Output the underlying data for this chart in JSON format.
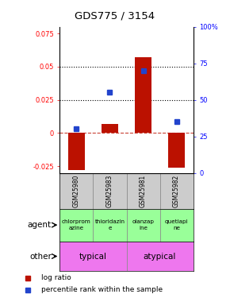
{
  "title": "GDS775 / 3154",
  "samples": [
    "GSM25980",
    "GSM25983",
    "GSM25981",
    "GSM25982"
  ],
  "log_ratios": [
    -0.028,
    0.007,
    0.057,
    -0.026
  ],
  "percentile_ranks_pct": [
    30,
    55,
    70,
    35
  ],
  "ylim_left": [
    -0.03,
    0.08
  ],
  "ylim_right": [
    0,
    100
  ],
  "yticks_left": [
    -0.025,
    0,
    0.025,
    0.05,
    0.075
  ],
  "yticks_left_labels": [
    "-0.025",
    "0",
    "0.025",
    "0.05",
    "0.075"
  ],
  "yticks_right": [
    0,
    25,
    50,
    75,
    100
  ],
  "yticks_right_labels": [
    "0",
    "25",
    "50",
    "75",
    "100%"
  ],
  "hlines_dotted": [
    0.025,
    0.05
  ],
  "hline_dashed": 0,
  "bar_color": "#bb1100",
  "dot_color": "#2244cc",
  "agent_labels": [
    "chlorprom\nazine",
    "thioridazin\ne",
    "olanzap\nine",
    "quetiapi\nne"
  ],
  "agent_color": "#99ff99",
  "other_labels": [
    "typical",
    "atypical"
  ],
  "other_color": "#ee77ee",
  "typical_cols": [
    0,
    1
  ],
  "atypical_cols": [
    2,
    3
  ],
  "legend_red": "log ratio",
  "legend_blue": "percentile rank within the sample",
  "agent_row_label": "agent",
  "other_row_label": "other",
  "sample_bg_color": "#cccccc",
  "bar_width": 0.5
}
